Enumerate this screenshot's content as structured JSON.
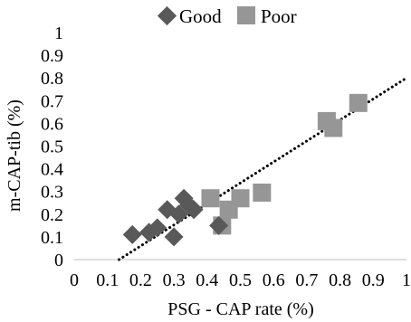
{
  "chart_data": {
    "type": "scatter",
    "xlabel": "PSG - CAP rate (%)",
    "ylabel": "m-CAP-tib (%)",
    "xlim": [
      0,
      1
    ],
    "ylim": [
      0,
      1
    ],
    "x_ticks": [
      "0",
      "0.1",
      "0.2",
      "0.3",
      "0.4",
      "0.5",
      "0.6",
      "0.7",
      "0.8",
      "0.9",
      "1"
    ],
    "y_ticks": [
      "0",
      "0.1",
      "0.2",
      "0.3",
      "0.4",
      "0.5",
      "0.6",
      "0.7",
      "0.8",
      "0.9",
      "1"
    ],
    "grid": false,
    "legend_position": "top",
    "series": [
      {
        "name": "Good",
        "marker": "diamond",
        "color": "#595959",
        "points": [
          {
            "x": 0.175,
            "y": 0.11
          },
          {
            "x": 0.225,
            "y": 0.12
          },
          {
            "x": 0.25,
            "y": 0.14
          },
          {
            "x": 0.28,
            "y": 0.22
          },
          {
            "x": 0.3,
            "y": 0.1
          },
          {
            "x": 0.315,
            "y": 0.2
          },
          {
            "x": 0.33,
            "y": 0.27
          },
          {
            "x": 0.345,
            "y": 0.24
          },
          {
            "x": 0.36,
            "y": 0.22
          },
          {
            "x": 0.435,
            "y": 0.15
          }
        ]
      },
      {
        "name": "Poor",
        "marker": "square",
        "color": "#969696",
        "points": [
          {
            "x": 0.41,
            "y": 0.27
          },
          {
            "x": 0.445,
            "y": 0.15
          },
          {
            "x": 0.465,
            "y": 0.22
          },
          {
            "x": 0.5,
            "y": 0.27
          },
          {
            "x": 0.565,
            "y": 0.295
          },
          {
            "x": 0.76,
            "y": 0.61
          },
          {
            "x": 0.78,
            "y": 0.58
          },
          {
            "x": 0.855,
            "y": 0.69
          }
        ]
      }
    ],
    "trendline": {
      "style": "dotted",
      "color": "#000000",
      "x": [
        0.135,
        1.0
      ],
      "y": [
        0.0,
        0.8
      ]
    }
  }
}
